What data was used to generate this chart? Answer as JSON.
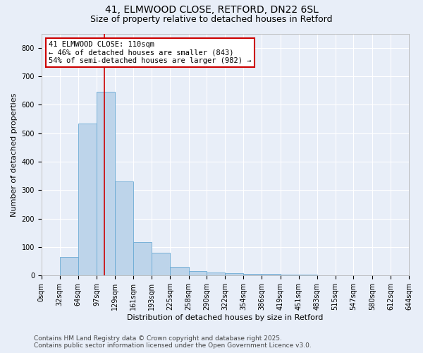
{
  "title1": "41, ELMWOOD CLOSE, RETFORD, DN22 6SL",
  "title2": "Size of property relative to detached houses in Retford",
  "xlabel": "Distribution of detached houses by size in Retford",
  "ylabel": "Number of detached properties",
  "bin_edges": [
    0,
    32,
    64,
    97,
    129,
    161,
    193,
    225,
    258,
    290,
    322,
    354,
    386,
    419,
    451,
    483,
    515,
    547,
    580,
    612,
    644
  ],
  "bar_heights": [
    0,
    65,
    535,
    645,
    330,
    118,
    80,
    30,
    15,
    10,
    8,
    5,
    5,
    4,
    2,
    1,
    1,
    0,
    0,
    0
  ],
  "bar_color": "#bdd4ea",
  "bar_edgecolor": "#6aaad4",
  "property_value": 110,
  "redline_color": "#cc0000",
  "annotation_text": "41 ELMWOOD CLOSE: 110sqm\n← 46% of detached houses are smaller (843)\n54% of semi-detached houses are larger (982) →",
  "annotation_box_edgecolor": "#cc0000",
  "annotation_box_facecolor": "#ffffff",
  "footer_text": "Contains HM Land Registry data © Crown copyright and database right 2025.\nContains public sector information licensed under the Open Government Licence v3.0.",
  "ylim": [
    0,
    850
  ],
  "yticks": [
    0,
    100,
    200,
    300,
    400,
    500,
    600,
    700,
    800
  ],
  "tick_labels": [
    "0sqm",
    "32sqm",
    "64sqm",
    "97sqm",
    "129sqm",
    "161sqm",
    "193sqm",
    "225sqm",
    "258sqm",
    "290sqm",
    "322sqm",
    "354sqm",
    "386sqm",
    "419sqm",
    "451sqm",
    "483sqm",
    "515sqm",
    "547sqm",
    "580sqm",
    "612sqm",
    "644sqm"
  ],
  "background_color": "#e8eef8",
  "grid_color": "#ffffff",
  "title_fontsize": 10,
  "subtitle_fontsize": 9,
  "axis_label_fontsize": 8,
  "tick_fontsize": 7,
  "annotation_fontsize": 7.5,
  "footer_fontsize": 6.5
}
